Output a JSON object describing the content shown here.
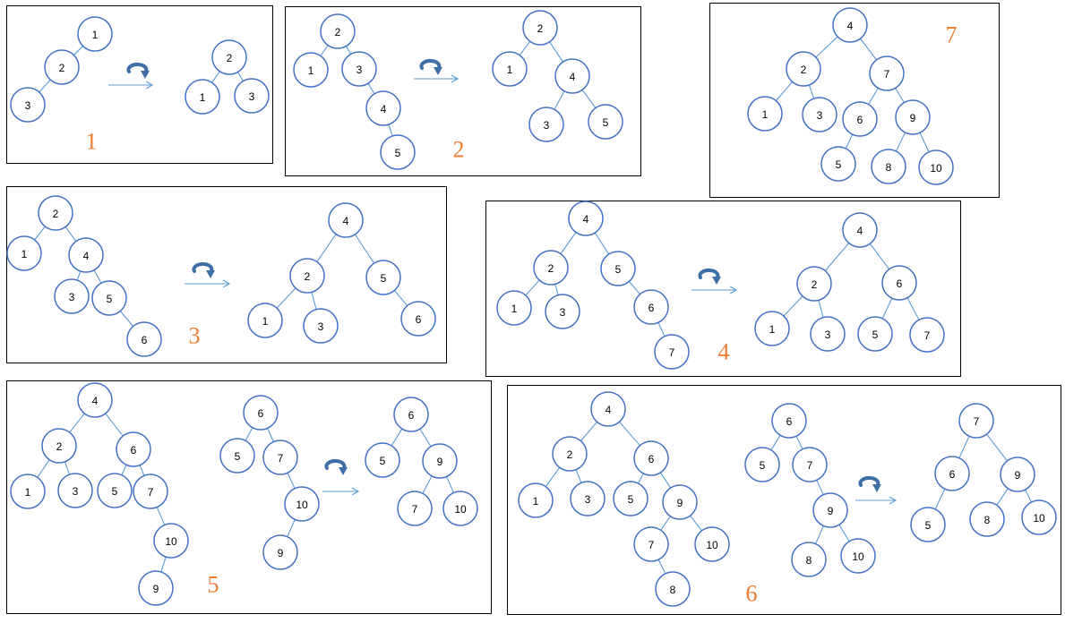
{
  "colors": {
    "node_stroke": "#4472c4",
    "edge": "#5b9bd5",
    "arrow": "#5b9bd5",
    "rotate_icon": "#3d6fa6",
    "step_number": "#ed7d31",
    "panel_border": "#000000"
  },
  "panels": [
    {
      "id": "panel-1",
      "step": "1",
      "trees": [
        {
          "nodes": [
            {
              "id": "a",
              "label": "1"
            },
            {
              "id": "b",
              "label": "2",
              "parent": "a"
            },
            {
              "id": "c",
              "label": "3",
              "parent": "b"
            }
          ]
        },
        {
          "nodes": [
            {
              "id": "a",
              "label": "2"
            },
            {
              "id": "b",
              "label": "1",
              "parent": "a"
            },
            {
              "id": "c",
              "label": "3",
              "parent": "a"
            }
          ]
        }
      ]
    },
    {
      "id": "panel-2",
      "step": "2",
      "trees": [
        {
          "nodes": [
            {
              "id": "a",
              "label": "2"
            },
            {
              "id": "b",
              "label": "1",
              "parent": "a"
            },
            {
              "id": "c",
              "label": "3",
              "parent": "a"
            },
            {
              "id": "d",
              "label": "4",
              "parent": "c"
            },
            {
              "id": "e",
              "label": "5",
              "parent": "d"
            }
          ]
        },
        {
          "nodes": [
            {
              "id": "a",
              "label": "2"
            },
            {
              "id": "b",
              "label": "1",
              "parent": "a"
            },
            {
              "id": "c",
              "label": "4",
              "parent": "a"
            },
            {
              "id": "d",
              "label": "3",
              "parent": "c"
            },
            {
              "id": "e",
              "label": "5",
              "parent": "c"
            }
          ]
        }
      ]
    },
    {
      "id": "panel-7",
      "step": "7",
      "trees": [
        {
          "nodes": [
            {
              "id": "a",
              "label": "4"
            },
            {
              "id": "b",
              "label": "2",
              "parent": "a"
            },
            {
              "id": "c",
              "label": "7",
              "parent": "a"
            },
            {
              "id": "d",
              "label": "1",
              "parent": "b"
            },
            {
              "id": "e",
              "label": "3",
              "parent": "b"
            },
            {
              "id": "f",
              "label": "6",
              "parent": "c"
            },
            {
              "id": "g",
              "label": "9",
              "parent": "c"
            },
            {
              "id": "h",
              "label": "5",
              "parent": "f"
            },
            {
              "id": "i",
              "label": "8",
              "parent": "g"
            },
            {
              "id": "j",
              "label": "10",
              "parent": "g"
            }
          ]
        }
      ]
    },
    {
      "id": "panel-3",
      "step": "3",
      "trees": [
        {
          "nodes": [
            {
              "id": "a",
              "label": "2"
            },
            {
              "id": "b",
              "label": "1",
              "parent": "a"
            },
            {
              "id": "c",
              "label": "4",
              "parent": "a"
            },
            {
              "id": "d",
              "label": "3",
              "parent": "c"
            },
            {
              "id": "e",
              "label": "5",
              "parent": "c"
            },
            {
              "id": "f",
              "label": "6",
              "parent": "e"
            }
          ]
        },
        {
          "nodes": [
            {
              "id": "a",
              "label": "4"
            },
            {
              "id": "b",
              "label": "2",
              "parent": "a"
            },
            {
              "id": "c",
              "label": "5",
              "parent": "a"
            },
            {
              "id": "d",
              "label": "1",
              "parent": "b"
            },
            {
              "id": "e",
              "label": "3",
              "parent": "b"
            },
            {
              "id": "f",
              "label": "6",
              "parent": "c"
            }
          ]
        }
      ]
    },
    {
      "id": "panel-4",
      "step": "4",
      "trees": [
        {
          "nodes": [
            {
              "id": "a",
              "label": "4"
            },
            {
              "id": "b",
              "label": "2",
              "parent": "a"
            },
            {
              "id": "c",
              "label": "5",
              "parent": "a"
            },
            {
              "id": "d",
              "label": "1",
              "parent": "b"
            },
            {
              "id": "e",
              "label": "3",
              "parent": "b"
            },
            {
              "id": "f",
              "label": "6",
              "parent": "c"
            },
            {
              "id": "g",
              "label": "7",
              "parent": "f"
            }
          ]
        },
        {
          "nodes": [
            {
              "id": "a",
              "label": "4"
            },
            {
              "id": "b",
              "label": "2",
              "parent": "a"
            },
            {
              "id": "c",
              "label": "6",
              "parent": "a"
            },
            {
              "id": "d",
              "label": "1",
              "parent": "b"
            },
            {
              "id": "e",
              "label": "3",
              "parent": "b"
            },
            {
              "id": "f",
              "label": "5",
              "parent": "c"
            },
            {
              "id": "g",
              "label": "7",
              "parent": "c"
            }
          ]
        }
      ]
    },
    {
      "id": "panel-5",
      "step": "5",
      "trees": [
        {
          "nodes": [
            {
              "id": "a",
              "label": "4"
            },
            {
              "id": "b",
              "label": "2",
              "parent": "a"
            },
            {
              "id": "c",
              "label": "6",
              "parent": "a"
            },
            {
              "id": "d",
              "label": "1",
              "parent": "b"
            },
            {
              "id": "e",
              "label": "3",
              "parent": "b"
            },
            {
              "id": "f",
              "label": "5",
              "parent": "c"
            },
            {
              "id": "g",
              "label": "7",
              "parent": "c"
            },
            {
              "id": "h",
              "label": "10",
              "parent": "g"
            },
            {
              "id": "i",
              "label": "9",
              "parent": "h"
            }
          ]
        },
        {
          "nodes": [
            {
              "id": "a",
              "label": "6"
            },
            {
              "id": "b",
              "label": "5",
              "parent": "a"
            },
            {
              "id": "c",
              "label": "7",
              "parent": "a"
            },
            {
              "id": "d",
              "label": "10",
              "parent": "c"
            },
            {
              "id": "e",
              "label": "9",
              "parent": "d"
            }
          ]
        },
        {
          "nodes": [
            {
              "id": "a",
              "label": "6"
            },
            {
              "id": "b",
              "label": "5",
              "parent": "a"
            },
            {
              "id": "c",
              "label": "9",
              "parent": "a"
            },
            {
              "id": "d",
              "label": "7",
              "parent": "c"
            },
            {
              "id": "e",
              "label": "10",
              "parent": "c"
            }
          ]
        }
      ]
    },
    {
      "id": "panel-6",
      "step": "6",
      "trees": [
        {
          "nodes": [
            {
              "id": "a",
              "label": "4"
            },
            {
              "id": "b",
              "label": "2",
              "parent": "a"
            },
            {
              "id": "c",
              "label": "6",
              "parent": "a"
            },
            {
              "id": "d",
              "label": "1",
              "parent": "b"
            },
            {
              "id": "e",
              "label": "3",
              "parent": "b"
            },
            {
              "id": "f",
              "label": "5",
              "parent": "c"
            },
            {
              "id": "g",
              "label": "9",
              "parent": "c"
            },
            {
              "id": "h",
              "label": "7",
              "parent": "g"
            },
            {
              "id": "i",
              "label": "10",
              "parent": "g"
            },
            {
              "id": "j",
              "label": "8",
              "parent": "h"
            }
          ]
        },
        {
          "nodes": [
            {
              "id": "a",
              "label": "6"
            },
            {
              "id": "b",
              "label": "5",
              "parent": "a"
            },
            {
              "id": "c",
              "label": "7",
              "parent": "a"
            },
            {
              "id": "d",
              "label": "9",
              "parent": "c"
            },
            {
              "id": "e",
              "label": "8",
              "parent": "d"
            },
            {
              "id": "f",
              "label": "10",
              "parent": "d"
            }
          ]
        },
        {
          "nodes": [
            {
              "id": "a",
              "label": "7"
            },
            {
              "id": "b",
              "label": "6",
              "parent": "a"
            },
            {
              "id": "c",
              "label": "9",
              "parent": "a"
            },
            {
              "id": "d",
              "label": "5",
              "parent": "b"
            },
            {
              "id": "e",
              "label": "8",
              "parent": "c"
            },
            {
              "id": "f",
              "label": "10",
              "parent": "c"
            }
          ]
        }
      ]
    }
  ]
}
